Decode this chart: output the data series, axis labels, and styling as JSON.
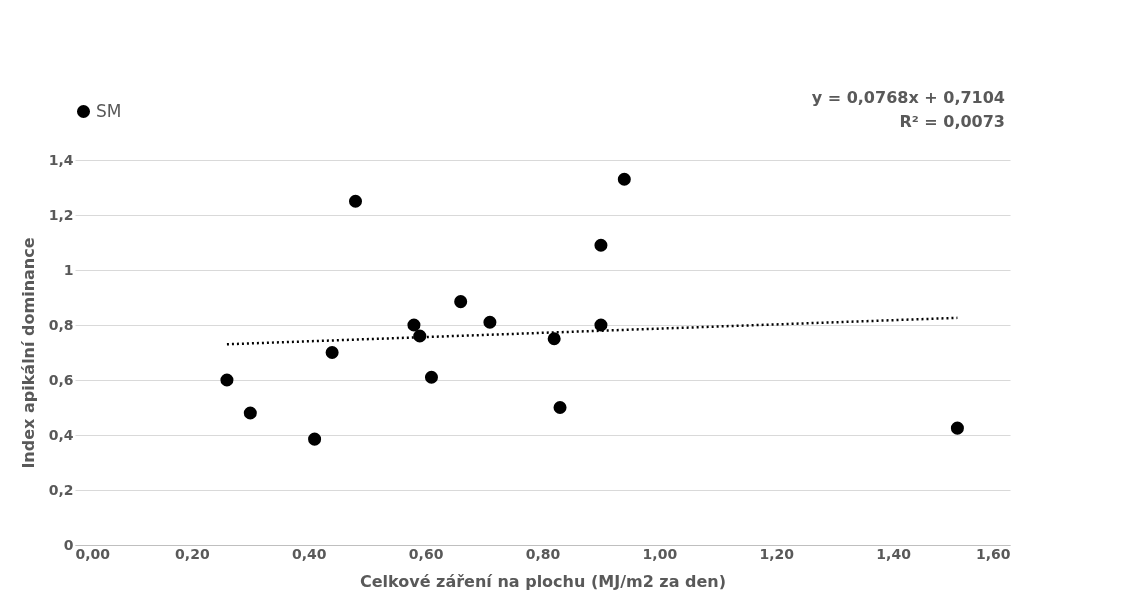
{
  "chart_data": {
    "type": "scatter",
    "xlabel": "Celkové záření na plochu (MJ/m2 za den)",
    "ylabel": "Index apikální dominance",
    "xlim": [
      0,
      1.6
    ],
    "xticks": [
      {
        "value": 0,
        "label": "0,00"
      },
      {
        "value": 0.2,
        "label": "0,20"
      },
      {
        "value": 0.4,
        "label": "0,40"
      },
      {
        "value": 0.6,
        "label": "0,60"
      },
      {
        "value": 0.8,
        "label": "0,80"
      },
      {
        "value": 1.0,
        "label": "1,00"
      },
      {
        "value": 1.2,
        "label": "1,20"
      },
      {
        "value": 1.4,
        "label": "1,40"
      },
      {
        "value": 1.6,
        "label": "1,60"
      }
    ],
    "ylim": [
      0,
      1.4
    ],
    "yticks": [
      0,
      {
        "value": 0.2,
        "label": "0,2"
      },
      {
        "value": 0.4,
        "label": "0,4"
      },
      {
        "value": 0.6,
        "label": "0,6"
      },
      {
        "value": 0.8,
        "label": "0,8"
      },
      1,
      {
        "value": 1.2,
        "label": "1,2"
      },
      {
        "value": 1.4,
        "label": "1,4"
      }
    ],
    "grid": "y",
    "legend": "top",
    "marker": "circle",
    "annotations": [
      "y = 0,0768x + 0,7104",
      "R² = 0,0073"
    ],
    "series": [
      {
        "name": "SM",
        "color": "#000000",
        "x": [
          0.26,
          0.3,
          0.41,
          0.44,
          0.48,
          0.58,
          0.59,
          0.61,
          0.66,
          0.71,
          0.82,
          0.83,
          0.9,
          0.9,
          0.94,
          1.51
        ],
        "values": [
          0.6,
          0.48,
          0.385,
          0.7,
          1.25,
          0.8,
          0.76,
          0.61,
          0.885,
          0.81,
          0.75,
          0.5,
          1.09,
          0.8,
          1.33,
          0.425
        ]
      },
      {
        "type": "line",
        "color": "#000000",
        "line_style": "dotted",
        "marker": "none",
        "x": [
          0.26,
          1.51
        ],
        "values": [
          0.73,
          0.826
        ]
      }
    ]
  }
}
